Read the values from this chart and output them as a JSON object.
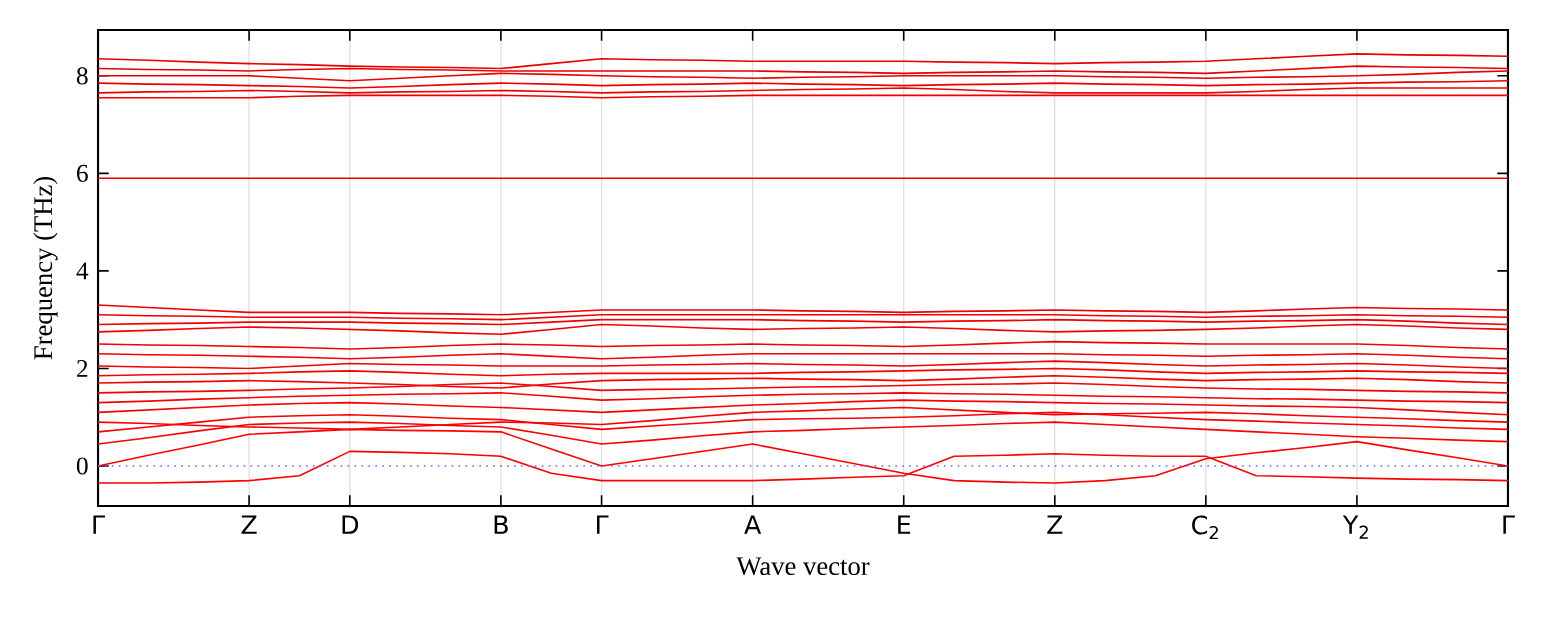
{
  "chart_data": {
    "type": "line",
    "xlabel": "Wave vector",
    "ylabel": "Frequency (THz)",
    "categories": [
      "Γ",
      null,
      null,
      "Z",
      null,
      "D",
      null,
      null,
      "B",
      null,
      "Γ",
      null,
      null,
      "A",
      null,
      null,
      "E",
      null,
      null,
      "Z",
      null,
      null,
      "C$_{2}$",
      null,
      null,
      "Y$_{2}$",
      null,
      null,
      "Γ"
    ],
    "ylim": [
      -0.82,
      8.94
    ],
    "yticks": [
      0,
      2,
      4,
      6,
      8
    ],
    "grid": "x",
    "marker": "none",
    "line_style": "solid",
    "ref_lines": [
      {
        "axis": "y",
        "value": 0,
        "color": "#6666ff",
        "line_style": "dotted"
      }
    ],
    "series": [
      {
        "color": "#ff0000",
        "values": [
          -0.35,
          -0.35,
          -0.33,
          -0.3,
          -0.2,
          0.3,
          0.28,
          0.25,
          0.2,
          -0.15,
          -0.3,
          -0.3,
          -0.3,
          -0.3,
          -0.27,
          -0.23,
          -0.2,
          0.2,
          0.22,
          0.25,
          0.22,
          0.2,
          0.2,
          -0.2,
          -0.22,
          -0.25,
          -0.27,
          -0.28,
          -0.3
        ]
      },
      {
        "color": "#fe0000",
        "values": [
          0,
          0.22,
          0.43,
          0.65,
          0.7,
          0.75,
          0.73,
          0.72,
          0.7,
          0.35,
          0,
          0.15,
          0.3,
          0.45,
          0.25,
          0.05,
          -0.15,
          -0.3,
          -0.33,
          -0.35,
          -0.3,
          -0.2,
          0.15,
          0.27,
          0.38,
          0.5,
          0.33,
          0.17,
          0
        ]
      },
      {
        "color": "#fd0000",
        "values": [
          0.45,
          0.58,
          0.72,
          0.85,
          0.88,
          0.9,
          0.87,
          0.83,
          0.8,
          0.63,
          0.45,
          0.53,
          0.62,
          0.7,
          0.73,
          0.77,
          0.8,
          0.83,
          0.87,
          0.9,
          0.85,
          0.8,
          0.75,
          0.7,
          0.65,
          0.6,
          0.57,
          0.53,
          0.5
        ]
      },
      {
        "color": "#fc0000",
        "values": [
          0.7,
          0.8,
          0.9,
          1.0,
          1.03,
          1.05,
          1.02,
          0.98,
          0.95,
          0.85,
          0.75,
          0.82,
          0.88,
          0.95,
          0.97,
          0.98,
          1.0,
          1.03,
          1.07,
          1.1,
          1.05,
          1.0,
          0.95,
          0.92,
          0.88,
          0.85,
          0.82,
          0.78,
          0.75
        ]
      },
      {
        "color": "#fb0000",
        "values": [
          0.9,
          0.87,
          0.83,
          0.8,
          0.78,
          0.75,
          0.8,
          0.85,
          0.9,
          0.88,
          0.85,
          0.93,
          1.02,
          1.1,
          1.13,
          1.17,
          1.2,
          1.15,
          1.1,
          1.05,
          1.07,
          1.08,
          1.1,
          1.07,
          1.03,
          1.0,
          0.97,
          0.93,
          0.9
        ]
      },
      {
        "color": "#fa0000",
        "values": [
          1.1,
          1.15,
          1.2,
          1.25,
          1.28,
          1.3,
          1.27,
          1.23,
          1.2,
          1.15,
          1.1,
          1.15,
          1.2,
          1.25,
          1.28,
          1.32,
          1.35,
          1.33,
          1.32,
          1.3,
          1.28,
          1.27,
          1.25,
          1.23,
          1.22,
          1.2,
          1.15,
          1.1,
          1.05
        ]
      },
      {
        "color": "#f90000",
        "values": [
          1.3,
          1.33,
          1.37,
          1.4,
          1.43,
          1.45,
          1.47,
          1.48,
          1.5,
          1.43,
          1.35,
          1.38,
          1.42,
          1.45,
          1.47,
          1.48,
          1.5,
          1.48,
          1.47,
          1.45,
          1.43,
          1.42,
          1.4,
          1.38,
          1.37,
          1.35,
          1.33,
          1.32,
          1.3
        ]
      },
      {
        "color": "#f80000",
        "values": [
          1.5,
          1.52,
          1.53,
          1.55,
          1.58,
          1.6,
          1.63,
          1.67,
          1.7,
          1.63,
          1.55,
          1.57,
          1.58,
          1.6,
          1.62,
          1.63,
          1.65,
          1.67,
          1.68,
          1.7,
          1.67,
          1.63,
          1.6,
          1.58,
          1.57,
          1.55,
          1.53,
          1.52,
          1.5
        ]
      },
      {
        "color": "#f70000",
        "values": [
          1.7,
          1.72,
          1.73,
          1.75,
          1.73,
          1.7,
          1.67,
          1.63,
          1.6,
          1.68,
          1.75,
          1.77,
          1.78,
          1.8,
          1.78,
          1.77,
          1.75,
          1.78,
          1.82,
          1.85,
          1.82,
          1.78,
          1.75,
          1.77,
          1.78,
          1.8,
          1.77,
          1.73,
          1.7
        ]
      },
      {
        "color": "#f60000",
        "values": [
          1.85,
          1.87,
          1.88,
          1.9,
          1.93,
          1.95,
          1.92,
          1.88,
          1.85,
          1.88,
          1.9,
          1.9,
          1.9,
          1.9,
          1.92,
          1.93,
          1.95,
          1.97,
          1.98,
          2.0,
          1.97,
          1.93,
          1.9,
          1.92,
          1.93,
          1.95,
          1.93,
          1.92,
          1.9
        ]
      },
      {
        "color": "#f50000",
        "values": [
          2.05,
          2.03,
          2.02,
          2.0,
          2.05,
          2.1,
          2.08,
          2.07,
          2.05,
          2.05,
          2.05,
          2.07,
          2.08,
          2.1,
          2.08,
          2.07,
          2.05,
          2.08,
          2.12,
          2.15,
          2.12,
          2.08,
          2.05,
          2.07,
          2.08,
          2.1,
          2.07,
          2.03,
          2.0
        ]
      },
      {
        "color": "#f40000",
        "values": [
          2.3,
          2.28,
          2.27,
          2.25,
          2.23,
          2.2,
          2.23,
          2.27,
          2.3,
          2.25,
          2.2,
          2.23,
          2.27,
          2.3,
          2.3,
          2.3,
          2.3,
          2.3,
          2.3,
          2.3,
          2.28,
          2.27,
          2.25,
          2.27,
          2.28,
          2.3,
          2.27,
          2.23,
          2.2
        ]
      },
      {
        "color": "#f30000",
        "values": [
          2.5,
          2.48,
          2.47,
          2.45,
          2.43,
          2.4,
          2.43,
          2.47,
          2.5,
          2.48,
          2.45,
          2.47,
          2.48,
          2.5,
          2.48,
          2.47,
          2.45,
          2.48,
          2.52,
          2.55,
          2.53,
          2.52,
          2.5,
          2.5,
          2.5,
          2.5,
          2.47,
          2.43,
          2.4
        ]
      },
      {
        "color": "#f20000",
        "values": [
          2.75,
          2.78,
          2.82,
          2.85,
          2.83,
          2.8,
          2.77,
          2.73,
          2.7,
          2.8,
          2.9,
          2.87,
          2.83,
          2.8,
          2.82,
          2.83,
          2.85,
          2.82,
          2.78,
          2.75,
          2.77,
          2.78,
          2.8,
          2.83,
          2.87,
          2.9,
          2.87,
          2.83,
          2.8
        ]
      },
      {
        "color": "#f10000",
        "values": [
          2.9,
          2.92,
          2.93,
          2.95,
          2.95,
          2.95,
          2.93,
          2.92,
          2.9,
          2.95,
          3.0,
          3.0,
          3.0,
          3.0,
          2.98,
          2.97,
          2.95,
          2.97,
          2.98,
          3.0,
          2.98,
          2.97,
          2.95,
          2.97,
          2.98,
          3.0,
          2.97,
          2.93,
          2.9
        ]
      },
      {
        "color": "#f00000",
        "values": [
          3.1,
          3.08,
          3.07,
          3.05,
          3.05,
          3.05,
          3.03,
          3.02,
          3.0,
          3.05,
          3.1,
          3.1,
          3.1,
          3.1,
          3.1,
          3.1,
          3.1,
          3.1,
          3.1,
          3.1,
          3.08,
          3.07,
          3.05,
          3.07,
          3.08,
          3.1,
          3.08,
          3.07,
          3.05
        ]
      },
      {
        "color": "#ef0000",
        "values": [
          3.3,
          3.25,
          3.2,
          3.15,
          3.15,
          3.15,
          3.13,
          3.12,
          3.1,
          3.15,
          3.2,
          3.2,
          3.2,
          3.2,
          3.18,
          3.17,
          3.15,
          3.17,
          3.18,
          3.2,
          3.18,
          3.17,
          3.15,
          3.18,
          3.22,
          3.25,
          3.23,
          3.22,
          3.2
        ]
      },
      {
        "color": "#ee0000",
        "values": [
          5.9,
          5.9,
          5.9,
          5.9,
          5.9,
          5.9,
          5.9,
          5.9,
          5.9,
          5.9,
          5.9,
          5.9,
          5.9,
          5.9,
          5.9,
          5.9,
          5.9,
          5.9,
          5.9,
          5.9,
          5.9,
          5.9,
          5.9,
          5.9,
          5.9,
          5.9,
          5.9,
          5.9,
          5.9
        ]
      },
      {
        "color": "#ed0000",
        "values": [
          7.55,
          7.55,
          7.55,
          7.55,
          7.58,
          7.6,
          7.6,
          7.6,
          7.6,
          7.58,
          7.55,
          7.57,
          7.58,
          7.6,
          7.6,
          7.6,
          7.6,
          7.6,
          7.6,
          7.6,
          7.6,
          7.6,
          7.6,
          7.6,
          7.6,
          7.6,
          7.6,
          7.6,
          7.6
        ]
      },
      {
        "color": "#ec0000",
        "values": [
          7.65,
          7.67,
          7.68,
          7.7,
          7.68,
          7.65,
          7.67,
          7.68,
          7.7,
          7.68,
          7.65,
          7.67,
          7.68,
          7.7,
          7.72,
          7.73,
          7.75,
          7.72,
          7.68,
          7.65,
          7.65,
          7.65,
          7.65,
          7.68,
          7.72,
          7.75,
          7.75,
          7.75,
          7.75
        ]
      },
      {
        "color": "#eb0000",
        "values": [
          7.85,
          7.83,
          7.82,
          7.8,
          7.78,
          7.75,
          7.78,
          7.82,
          7.85,
          7.83,
          7.8,
          7.82,
          7.83,
          7.85,
          7.83,
          7.82,
          7.8,
          7.82,
          7.83,
          7.85,
          7.83,
          7.82,
          7.8,
          7.82,
          7.83,
          7.85,
          7.87,
          7.88,
          7.9
        ]
      },
      {
        "color": "#ea0000",
        "values": [
          8.0,
          8.0,
          8.0,
          8.0,
          7.95,
          7.9,
          7.95,
          8.0,
          8.05,
          8.03,
          8.0,
          7.98,
          7.97,
          7.95,
          7.97,
          7.98,
          8.0,
          8.0,
          8.0,
          8.0,
          7.98,
          7.97,
          7.95,
          7.97,
          7.98,
          8.0,
          8.03,
          8.07,
          8.1
        ]
      },
      {
        "color": "#e90000",
        "values": [
          8.15,
          8.13,
          8.12,
          8.1,
          8.13,
          8.15,
          8.13,
          8.12,
          8.1,
          8.1,
          8.1,
          8.1,
          8.1,
          8.1,
          8.08,
          8.07,
          8.05,
          8.07,
          8.08,
          8.1,
          8.08,
          8.07,
          8.05,
          8.1,
          8.15,
          8.2,
          8.18,
          8.17,
          8.15
        ]
      },
      {
        "color": "#e80000",
        "values": [
          8.35,
          8.32,
          8.28,
          8.25,
          8.23,
          8.2,
          8.18,
          8.17,
          8.15,
          8.25,
          8.35,
          8.33,
          8.32,
          8.3,
          8.3,
          8.3,
          8.3,
          8.28,
          8.27,
          8.25,
          8.27,
          8.28,
          8.3,
          8.35,
          8.4,
          8.45,
          8.43,
          8.42,
          8.4
        ]
      }
    ]
  }
}
